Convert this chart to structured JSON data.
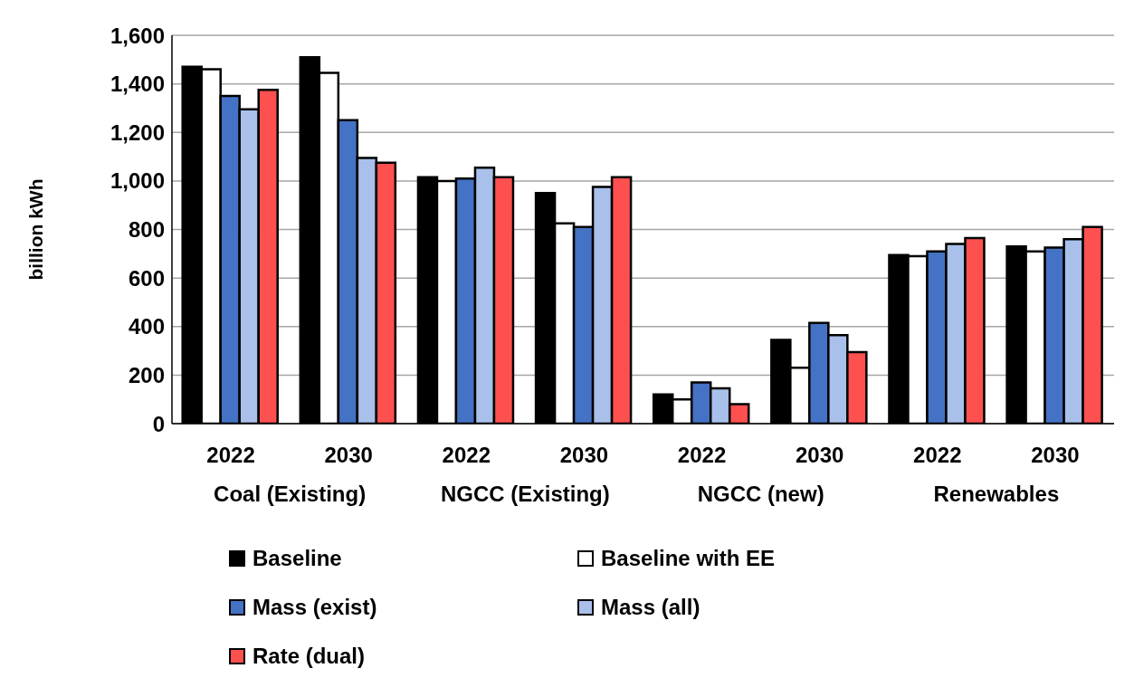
{
  "chart_data": {
    "type": "bar",
    "ylabel": "billion kWh",
    "categories": [
      "2022",
      "2030",
      "2022",
      "2030",
      "2022",
      "2030",
      "2022",
      "2030"
    ],
    "annotations": [
      "Coal (Existing)",
      "NGCC (Existing)",
      "NGCC (new)",
      "Renewables"
    ],
    "series": [
      {
        "name": "Baseline",
        "color": "#000000",
        "values": [
          1470,
          1510,
          1015,
          950,
          120,
          345,
          695,
          730
        ]
      },
      {
        "name": "Baseline with EE",
        "color": "#ffffff",
        "values": [
          1460,
          1445,
          1000,
          825,
          100,
          230,
          690,
          710
        ]
      },
      {
        "name": "Mass (exist)",
        "color": "#4472c4",
        "values": [
          1350,
          1250,
          1010,
          810,
          170,
          415,
          710,
          725
        ]
      },
      {
        "name": "Mass (all)",
        "color": "#a9c0ea",
        "values": [
          1295,
          1095,
          1055,
          975,
          145,
          365,
          740,
          760
        ]
      },
      {
        "name": "Rate (dual)",
        "color": "#ff5050",
        "values": [
          1375,
          1075,
          1015,
          1015,
          80,
          295,
          765,
          810
        ]
      }
    ],
    "ylim": [
      0,
      1600
    ],
    "yticks": [
      0,
      {
        "value": 200,
        "label": "200"
      },
      {
        "value": 400,
        "label": "400"
      },
      {
        "value": 600,
        "label": "600"
      },
      {
        "value": 800,
        "label": "800"
      },
      {
        "value": 1000,
        "label": "1,000"
      },
      {
        "value": 1200,
        "label": "1,200"
      },
      {
        "value": 1400,
        "label": "1,400"
      },
      {
        "value": 1600,
        "label": "1,600"
      }
    ],
    "grid": "y",
    "legend": "bottom"
  }
}
